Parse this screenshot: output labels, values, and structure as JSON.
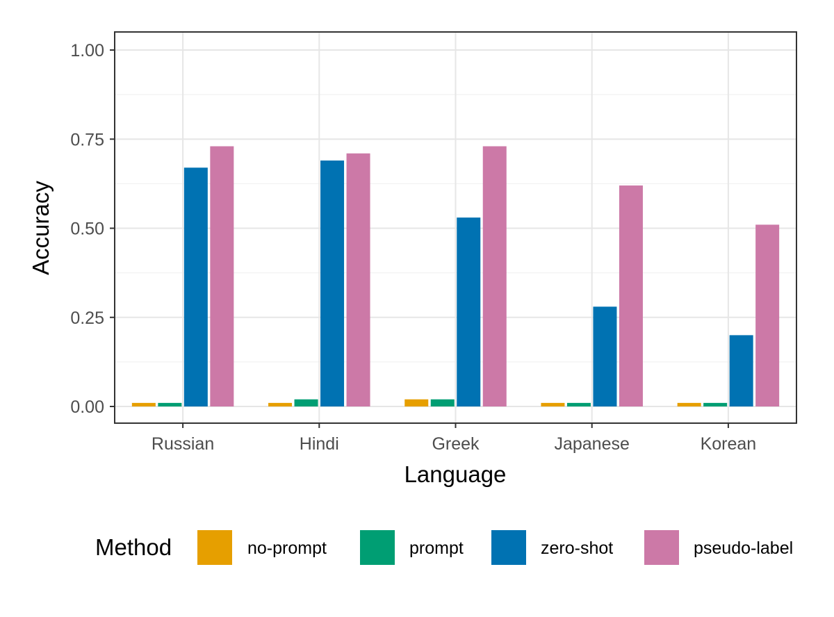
{
  "chart_data": {
    "type": "bar",
    "title": "",
    "xlabel": "Language",
    "ylabel": "Accuracy",
    "categories": [
      "Russian",
      "Hindi",
      "Greek",
      "Japanese",
      "Korean"
    ],
    "ylim": [
      0,
      1.05
    ],
    "yticks": [
      0.0,
      0.25,
      0.5,
      0.75,
      1.0
    ],
    "ytick_labels": [
      "0.00",
      "0.25",
      "0.50",
      "0.75",
      "1.00"
    ],
    "grid": true,
    "legend": {
      "title": "Method",
      "position": "bottom"
    },
    "series": [
      {
        "name": "no-prompt",
        "color": "#E69F00",
        "values": [
          0.01,
          0.01,
          0.02,
          0.01,
          0.01
        ]
      },
      {
        "name": "prompt",
        "color": "#009E73",
        "values": [
          0.01,
          0.02,
          0.02,
          0.01,
          0.01
        ]
      },
      {
        "name": "zero-shot",
        "color": "#0072B2",
        "values": [
          0.67,
          0.69,
          0.53,
          0.28,
          0.2
        ]
      },
      {
        "name": "pseudo-label",
        "color": "#CC79A7",
        "values": [
          0.73,
          0.71,
          0.73,
          0.62,
          0.51
        ]
      }
    ]
  }
}
